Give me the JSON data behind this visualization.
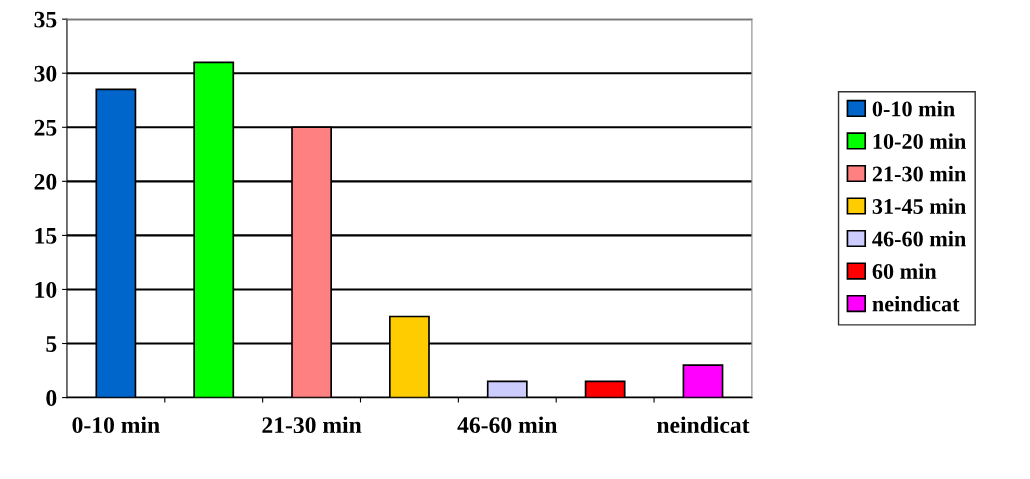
{
  "chart_data": {
    "type": "bar",
    "categories": [
      "0-10 min",
      null,
      "21-30 min",
      null,
      "46-60 min",
      null,
      "neindicat"
    ],
    "series": [
      {
        "name": "0-10 min",
        "color": "#0066cc",
        "values": [
          28.5,
          null,
          null,
          null,
          null,
          null,
          null
        ]
      },
      {
        "name": "10-20 min",
        "color": "#00ff00",
        "values": [
          null,
          31,
          null,
          null,
          null,
          null,
          null
        ]
      },
      {
        "name": "21-30 min",
        "color": "#ff8080",
        "values": [
          null,
          null,
          25,
          null,
          null,
          null,
          null
        ]
      },
      {
        "name": "31-45 min",
        "color": "#ffcc00",
        "values": [
          null,
          null,
          null,
          7.5,
          null,
          null,
          null
        ]
      },
      {
        "name": "46-60 min",
        "color": "#ccccff",
        "values": [
          null,
          null,
          null,
          null,
          1.5,
          null,
          null
        ]
      },
      {
        "name": "60 min",
        "color": "#ff0000",
        "values": [
          null,
          null,
          null,
          null,
          null,
          1.5,
          null
        ]
      },
      {
        "name": "neindicat",
        "color": "#ff00ff",
        "values": [
          null,
          null,
          null,
          null,
          null,
          null,
          3
        ]
      }
    ],
    "ylim": [
      0,
      35
    ],
    "yticks": [
      0,
      5,
      10,
      15,
      20,
      25,
      30,
      35
    ],
    "grid": "y",
    "legend": "right"
  }
}
